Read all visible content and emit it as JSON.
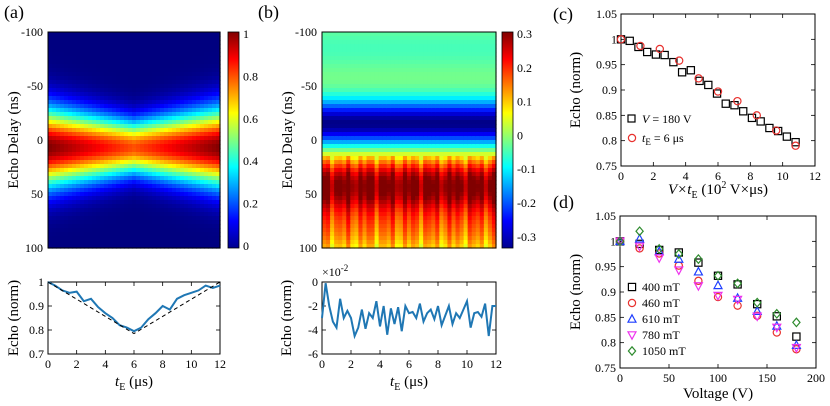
{
  "panel_labels": [
    "(a)",
    "(b)",
    "(c)",
    "(d)"
  ],
  "chart_data": [
    {
      "id": "a_heatmap",
      "type": "heatmap",
      "xlabel": "",
      "ylabel": "Echo Delay (ns)",
      "ylim": [
        -100,
        100
      ],
      "yticks": [
        "-100",
        "-50",
        "0",
        "50",
        "100"
      ],
      "colorbar": {
        "min": 0,
        "max": 1,
        "ticks": [
          "0",
          "0.2",
          "0.4",
          "0.6",
          "0.8",
          "1"
        ]
      },
      "x_range": [
        0,
        12
      ],
      "peak_center_ns": 7,
      "peak_width_ns": [
        35,
        24
      ],
      "peak_amplitude": [
        1.0,
        0.8
      ]
    },
    {
      "id": "a_line",
      "type": "line",
      "xlabel_main": "t",
      "xlabel_sub": "E",
      "xlabel_unit": " (μs)",
      "ylabel": "Echo (norm)",
      "xlim": [
        0,
        12
      ],
      "ylim": [
        0.7,
        1.0
      ],
      "xticks": [
        "0",
        "2",
        "4",
        "6",
        "8",
        "10",
        "12"
      ],
      "yticks": [
        "0.7",
        "0.8",
        "0.9",
        "1"
      ],
      "series": [
        {
          "style": "solid",
          "color": "#1f77b4",
          "x": [
            0,
            0.5,
            1,
            1.5,
            2,
            2.5,
            3,
            3.5,
            4,
            4.5,
            5,
            5.5,
            6,
            6.5,
            7,
            7.5,
            8,
            8.5,
            9,
            9.5,
            10,
            10.5,
            11,
            11.5,
            12
          ],
          "values": [
            1.0,
            0.985,
            0.965,
            0.955,
            0.96,
            0.92,
            0.93,
            0.895,
            0.87,
            0.85,
            0.82,
            0.81,
            0.795,
            0.81,
            0.845,
            0.87,
            0.9,
            0.885,
            0.93,
            0.945,
            0.955,
            0.965,
            0.985,
            0.975,
            0.985
          ]
        },
        {
          "style": "dashed",
          "color": "#000000",
          "x": [
            0,
            6,
            12
          ],
          "values": [
            1.0,
            0.785,
            1.0
          ]
        }
      ]
    },
    {
      "id": "b_heatmap",
      "type": "heatmap",
      "xlabel": "",
      "ylabel": "Echo Delay (ns)",
      "ylim": [
        -100,
        100
      ],
      "yticks": [
        "-100",
        "-50",
        "0",
        "50",
        "100"
      ],
      "colorbar": {
        "min": -0.33,
        "max": 0.3,
        "ticks": [
          "0.3",
          "0.2",
          "0.1",
          "0",
          "-0.1",
          "-0.2",
          "-0.3"
        ]
      },
      "x_range": [
        0,
        12
      ]
    },
    {
      "id": "b_line",
      "type": "line",
      "xlabel_main": "t",
      "xlabel_sub": "E",
      "xlabel_unit": " (μs)",
      "ylabel": "Echo (norm)",
      "multiplier": "×10",
      "multiplier_exp": "-2",
      "xlim": [
        0,
        12
      ],
      "ylim": [
        -6,
        0
      ],
      "xticks": [
        "0",
        "2",
        "4",
        "6",
        "8",
        "10",
        "12"
      ],
      "yticks": [
        "0",
        "-2",
        "-4",
        "-6"
      ],
      "series": [
        {
          "style": "solid",
          "color": "#1f77b4",
          "x": [
            0,
            0.25,
            0.5,
            0.75,
            1,
            1.25,
            1.5,
            1.75,
            2,
            2.25,
            2.5,
            2.75,
            3,
            3.25,
            3.5,
            3.75,
            4,
            4.25,
            4.5,
            4.75,
            5,
            5.25,
            5.5,
            5.75,
            6,
            6.25,
            6.5,
            6.75,
            7,
            7.25,
            7.5,
            7.75,
            8,
            8.25,
            8.5,
            8.75,
            9,
            9.25,
            9.5,
            9.75,
            10,
            10.25,
            10.5,
            10.75,
            11,
            11.25,
            11.5,
            11.75,
            12
          ],
          "values": [
            -3.0,
            -0.1,
            -2.0,
            -3.3,
            -3.8,
            -1.4,
            -3.0,
            -2.4,
            -3.0,
            -4.5,
            -3.8,
            -2.3,
            -3.9,
            -2.6,
            -3.0,
            -1.6,
            -3.7,
            -2.0,
            -4.4,
            -2.2,
            -3.5,
            -2.1,
            -4.1,
            -2.0,
            -2.6,
            -2.5,
            -3.0,
            -1.8,
            -3.3,
            -2.6,
            -2.3,
            -3.1,
            -2.0,
            -3.6,
            -2.8,
            -2.0,
            -3.5,
            -2.6,
            -3.0,
            -2.3,
            -1.6,
            -3.8,
            -2.6,
            -2.5,
            -2.9,
            -1.8,
            -4.5,
            -2.0,
            -2.0
          ]
        }
      ]
    },
    {
      "id": "c_scatter",
      "type": "scatter",
      "xlabel_pre": "V×t",
      "xlabel_sub": "E",
      "xlabel_post": " (10",
      "xlabel_sup": "2",
      "xlabel_unit": " V×μs)",
      "ylabel": "Echo (norm)",
      "xlim": [
        0,
        12
      ],
      "ylim": [
        0.75,
        1.05
      ],
      "xticks": [
        "0",
        "2",
        "4",
        "6",
        "8",
        "10",
        "12"
      ],
      "yticks": [
        "0.75",
        "0.8",
        "0.85",
        "0.9",
        "0.95",
        "1",
        "1.05"
      ],
      "legend_position": "bottom-left",
      "series": [
        {
          "name_main": "V",
          "name_rest": " = 180 V",
          "marker": "square",
          "color": "#000000",
          "x": [
            0,
            0.54,
            1.08,
            1.62,
            2.16,
            2.7,
            3.24,
            3.78,
            4.32,
            4.86,
            5.4,
            5.94,
            6.48,
            7.02,
            7.56,
            8.1,
            8.64,
            9.18,
            9.72,
            10.26,
            10.8
          ],
          "values": [
            1.0,
            0.997,
            0.985,
            0.975,
            0.97,
            0.969,
            0.955,
            0.935,
            0.939,
            0.918,
            0.91,
            0.893,
            0.873,
            0.87,
            0.858,
            0.845,
            0.838,
            0.825,
            0.819,
            0.808,
            0.797
          ]
        },
        {
          "name_main": "t",
          "name_sub": "E",
          "name_rest": " = 6 μs",
          "marker": "circle",
          "color": "#e8312e",
          "x": [
            0,
            1.2,
            2.4,
            3.6,
            4.8,
            6.0,
            7.2,
            8.4,
            9.6,
            10.8
          ],
          "values": [
            1.0,
            0.987,
            0.981,
            0.958,
            0.923,
            0.897,
            0.878,
            0.85,
            0.82,
            0.79
          ]
        }
      ]
    },
    {
      "id": "d_scatter",
      "type": "scatter",
      "xlabel": "Voltage (V)",
      "ylabel": "Echo (norm)",
      "xlim": [
        0,
        200
      ],
      "ylim": [
        0.75,
        1.05
      ],
      "xticks": [
        "0",
        "50",
        "100",
        "150",
        "200"
      ],
      "yticks": [
        "0.75",
        "0.8",
        "0.85",
        "0.9",
        "0.95",
        "1",
        "1.05"
      ],
      "legend_position": "bottom-left",
      "series": [
        {
          "name": "400 mT",
          "marker": "square",
          "color": "#000000",
          "x": [
            0,
            20,
            40,
            60,
            80,
            100,
            120,
            140,
            160,
            180
          ],
          "values": [
            1.0,
            0.995,
            0.983,
            0.978,
            0.958,
            0.932,
            0.915,
            0.876,
            0.852,
            0.812
          ]
        },
        {
          "name": "460 mT",
          "marker": "circle",
          "color": "#e8312e",
          "x": [
            0,
            20,
            40,
            60,
            80,
            100,
            120,
            140,
            160,
            180
          ],
          "values": [
            1.0,
            0.986,
            0.976,
            0.952,
            0.922,
            0.89,
            0.873,
            0.853,
            0.82,
            0.787
          ]
        },
        {
          "name": "610 mT",
          "marker": "triangle-up",
          "color": "#1f3fff",
          "x": [
            0,
            20,
            40,
            60,
            80,
            100,
            120,
            140,
            160,
            180
          ],
          "values": [
            1.0,
            1.005,
            0.98,
            0.965,
            0.94,
            0.913,
            0.888,
            0.862,
            0.833,
            0.795
          ]
        },
        {
          "name": "780 mT",
          "marker": "triangle-down",
          "color": "#ee33ee",
          "x": [
            0,
            20,
            40,
            60,
            80,
            100,
            120,
            140,
            160,
            180
          ],
          "values": [
            1.0,
            0.99,
            0.967,
            0.943,
            0.912,
            0.893,
            0.885,
            0.852,
            0.83,
            0.79
          ]
        },
        {
          "name": "1050 mT",
          "marker": "diamond",
          "color": "#2e8b2e",
          "x": [
            0,
            20,
            40,
            60,
            80,
            100,
            120,
            140,
            160,
            180
          ],
          "values": [
            1.0,
            1.02,
            0.985,
            0.975,
            0.965,
            0.932,
            0.917,
            0.879,
            0.857,
            0.84
          ]
        }
      ]
    }
  ]
}
